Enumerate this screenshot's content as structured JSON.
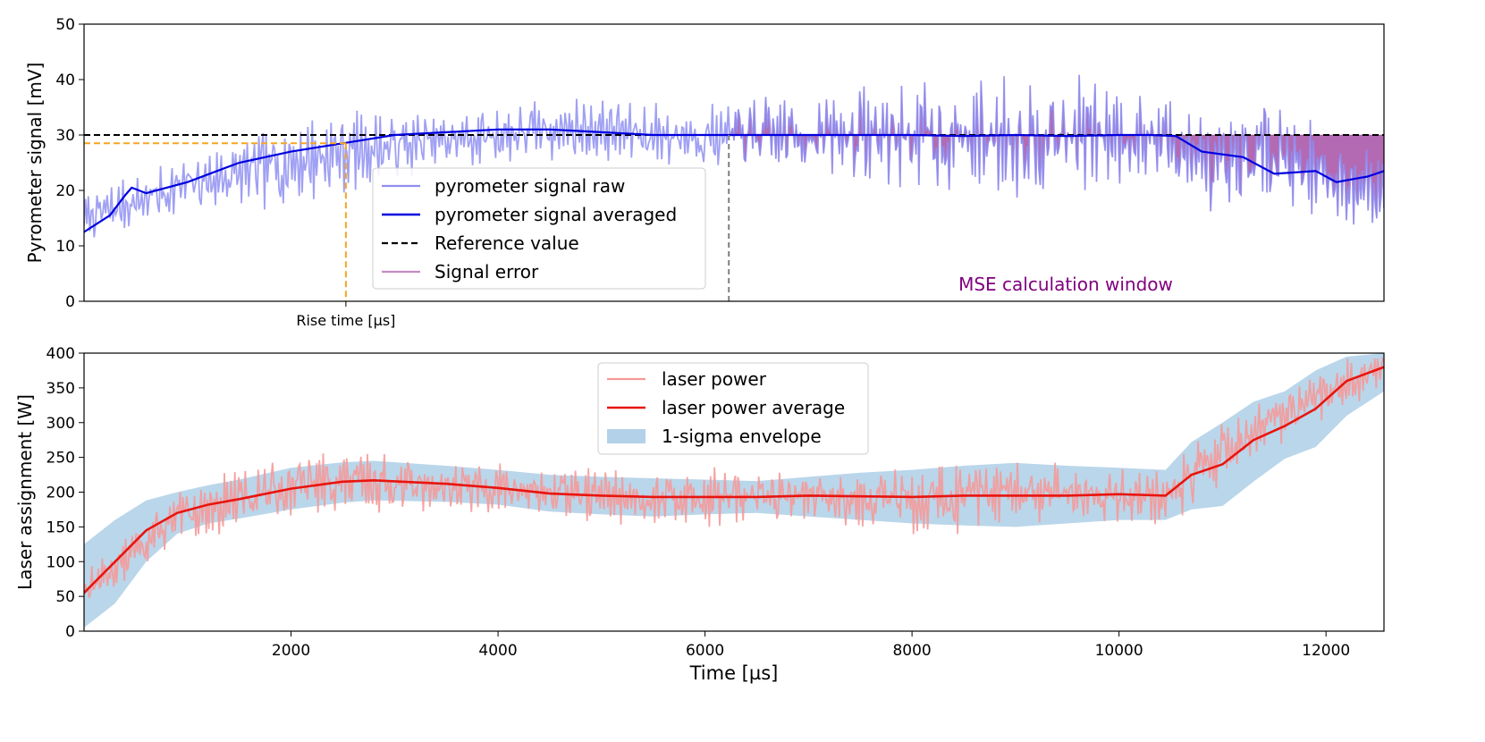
{
  "chart_data": [
    {
      "type": "line",
      "ylabel": "Pyrometer signal [mV]",
      "xlabel": "",
      "xlim": [
        0,
        12560
      ],
      "ylim": [
        0,
        50
      ],
      "yticks": [
        0,
        10,
        20,
        30,
        40,
        50
      ],
      "reference_value": 30,
      "rise_time": {
        "label": "Rise time [µs]",
        "x": 2530,
        "y": 28.5
      },
      "mse_window": {
        "label": "MSE calculation window",
        "start": 6230,
        "end": 12560
      },
      "legend": {
        "placement": "center",
        "entries": [
          "pyrometer signal raw",
          "pyrometer signal averaged",
          "Reference value",
          "Signal error"
        ]
      },
      "series": [
        {
          "name": "pyrometer signal raw",
          "color": "#8f8ff2",
          "noise_seed": 7,
          "noise_amplitude_profile": [
            [
              0,
              4
            ],
            [
              1500,
              6
            ],
            [
              2000,
              8
            ],
            [
              3500,
              5
            ],
            [
              6200,
              6
            ],
            [
              8200,
              10
            ],
            [
              9500,
              11
            ],
            [
              10500,
              8
            ],
            [
              11200,
              10
            ],
            [
              12560,
              7
            ]
          ],
          "x": [
            0,
            500,
            1000,
            1500,
            2000,
            2500,
            3000,
            3500,
            4000,
            4500,
            5000,
            5500,
            6000,
            6500,
            7000,
            7500,
            8000,
            8500,
            9000,
            9500,
            10000,
            10500,
            11000,
            11500,
            12000,
            12560
          ],
          "y": [
            15,
            18,
            21,
            23,
            25,
            27,
            28,
            29,
            30,
            31,
            31,
            30,
            30,
            30,
            30,
            30,
            30,
            29.5,
            30,
            30,
            30,
            29,
            22,
            28,
            22,
            20
          ]
        },
        {
          "name": "pyrometer signal averaged",
          "color": "#0000e0",
          "x": [
            0,
            250,
            400,
            460,
            600,
            1000,
            1500,
            2000,
            2500,
            3000,
            3500,
            4000,
            4500,
            5000,
            5500,
            6000,
            6500,
            7000,
            7500,
            8000,
            8500,
            9000,
            9500,
            10000,
            10300,
            10550,
            10800,
            11200,
            11500,
            11900,
            12100,
            12400,
            12560
          ],
          "y": [
            12.5,
            15.5,
            19.2,
            20.5,
            19.5,
            21.5,
            25,
            27,
            28.5,
            30,
            30.5,
            31,
            31,
            30.5,
            30,
            30,
            30,
            30,
            30,
            30,
            29.8,
            30,
            29.8,
            30,
            30,
            29.8,
            27,
            26,
            23,
            23.5,
            21.5,
            22.5,
            23.5
          ]
        },
        {
          "name": "Reference value",
          "color": "#000000",
          "x": [
            0,
            12560
          ],
          "y": [
            30,
            30
          ]
        },
        {
          "name": "Signal error",
          "color": "#8b1a8b"
        }
      ]
    },
    {
      "type": "line",
      "ylabel": "Laser assignment [W]",
      "xlabel": "Time [µs]",
      "xlim": [
        0,
        12560
      ],
      "ylim": [
        0,
        400
      ],
      "xticks": [
        2000,
        4000,
        6000,
        8000,
        10000,
        12000
      ],
      "yticks": [
        0,
        50,
        100,
        150,
        200,
        250,
        300,
        350,
        400
      ],
      "legend": {
        "placement": "upper center",
        "entries": [
          "laser power",
          "laser power average",
          "1-sigma envelope"
        ]
      },
      "series": [
        {
          "name": "laser power",
          "color": "#f59a9a",
          "noise_seed": 13,
          "noise_amplitude_profile": [
            [
              0,
              25
            ],
            [
              1500,
              45
            ],
            [
              4000,
              35
            ],
            [
              6000,
              40
            ],
            [
              7000,
              35
            ],
            [
              8500,
              55
            ],
            [
              10000,
              40
            ],
            [
              11000,
              45
            ],
            [
              12560,
              30
            ]
          ],
          "x": [
            0,
            300,
            600,
            1000,
            1500,
            2000,
            2500,
            3000,
            4000,
            5000,
            6000,
            7000,
            8000,
            9000,
            10000,
            10500,
            11000,
            11500,
            12000,
            12500
          ],
          "y": [
            60,
            90,
            130,
            170,
            190,
            210,
            215,
            212,
            205,
            195,
            192,
            195,
            190,
            195,
            195,
            195,
            260,
            300,
            340,
            380
          ]
        },
        {
          "name": "laser power average",
          "color": "#e8140e",
          "x": [
            0,
            300,
            600,
            900,
            1200,
            1500,
            2000,
            2500,
            2800,
            3500,
            4000,
            4500,
            5000,
            5500,
            6000,
            6500,
            7000,
            7500,
            8000,
            8500,
            9000,
            9500,
            10000,
            10450,
            10700,
            11000,
            11300,
            11600,
            11900,
            12200,
            12560
          ],
          "y": [
            55,
            100,
            145,
            170,
            182,
            190,
            205,
            215,
            217,
            212,
            206,
            198,
            195,
            193,
            193,
            193,
            195,
            194,
            193,
            195,
            195,
            195,
            197,
            195,
            225,
            240,
            275,
            295,
            320,
            360,
            380
          ]
        },
        {
          "name": "1-sigma envelope",
          "color": "#b3d1e8",
          "x": [
            0,
            300,
            600,
            900,
            1200,
            1500,
            2000,
            2500,
            2800,
            3500,
            4000,
            4500,
            5000,
            5500,
            6000,
            6500,
            7000,
            7500,
            8000,
            8500,
            9000,
            9500,
            10000,
            10450,
            10700,
            11000,
            11300,
            11600,
            11900,
            12200,
            12560
          ],
          "lower": [
            5,
            40,
            100,
            140,
            155,
            162,
            175,
            185,
            188,
            186,
            182,
            172,
            168,
            165,
            168,
            170,
            165,
            160,
            155,
            152,
            150,
            155,
            160,
            160,
            175,
            180,
            215,
            248,
            265,
            310,
            345
          ],
          "upper": [
            125,
            160,
            188,
            200,
            210,
            218,
            235,
            243,
            245,
            238,
            232,
            225,
            222,
            220,
            218,
            216,
            222,
            228,
            232,
            238,
            242,
            238,
            235,
            232,
            272,
            300,
            330,
            345,
            375,
            395,
            400
          ]
        }
      ]
    }
  ]
}
